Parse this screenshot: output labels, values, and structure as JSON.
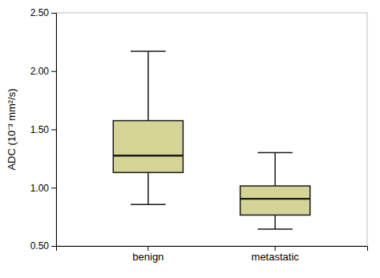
{
  "chart_data": {
    "type": "box",
    "categories": [
      "benign",
      "metastatic"
    ],
    "whisker_low": [
      0.855,
      0.645
    ],
    "q1": [
      1.13,
      0.765
    ],
    "median": [
      1.275,
      0.905
    ],
    "q3": [
      1.575,
      1.015
    ],
    "whisker_high": [
      2.17,
      1.3
    ],
    "color": "#d4d496",
    "ylabel": "ADC (10⁻³ mm²/s)",
    "ylim": [
      0.5,
      2.5
    ],
    "yticks": [
      {
        "value": 0.5,
        "label": "0.50"
      },
      {
        "value": 1.0,
        "label": "1.00"
      },
      {
        "value": 1.5,
        "label": "1.50"
      },
      {
        "value": 2.0,
        "label": "2.00"
      },
      {
        "value": 2.5,
        "label": "2.50"
      }
    ],
    "grid": false
  }
}
